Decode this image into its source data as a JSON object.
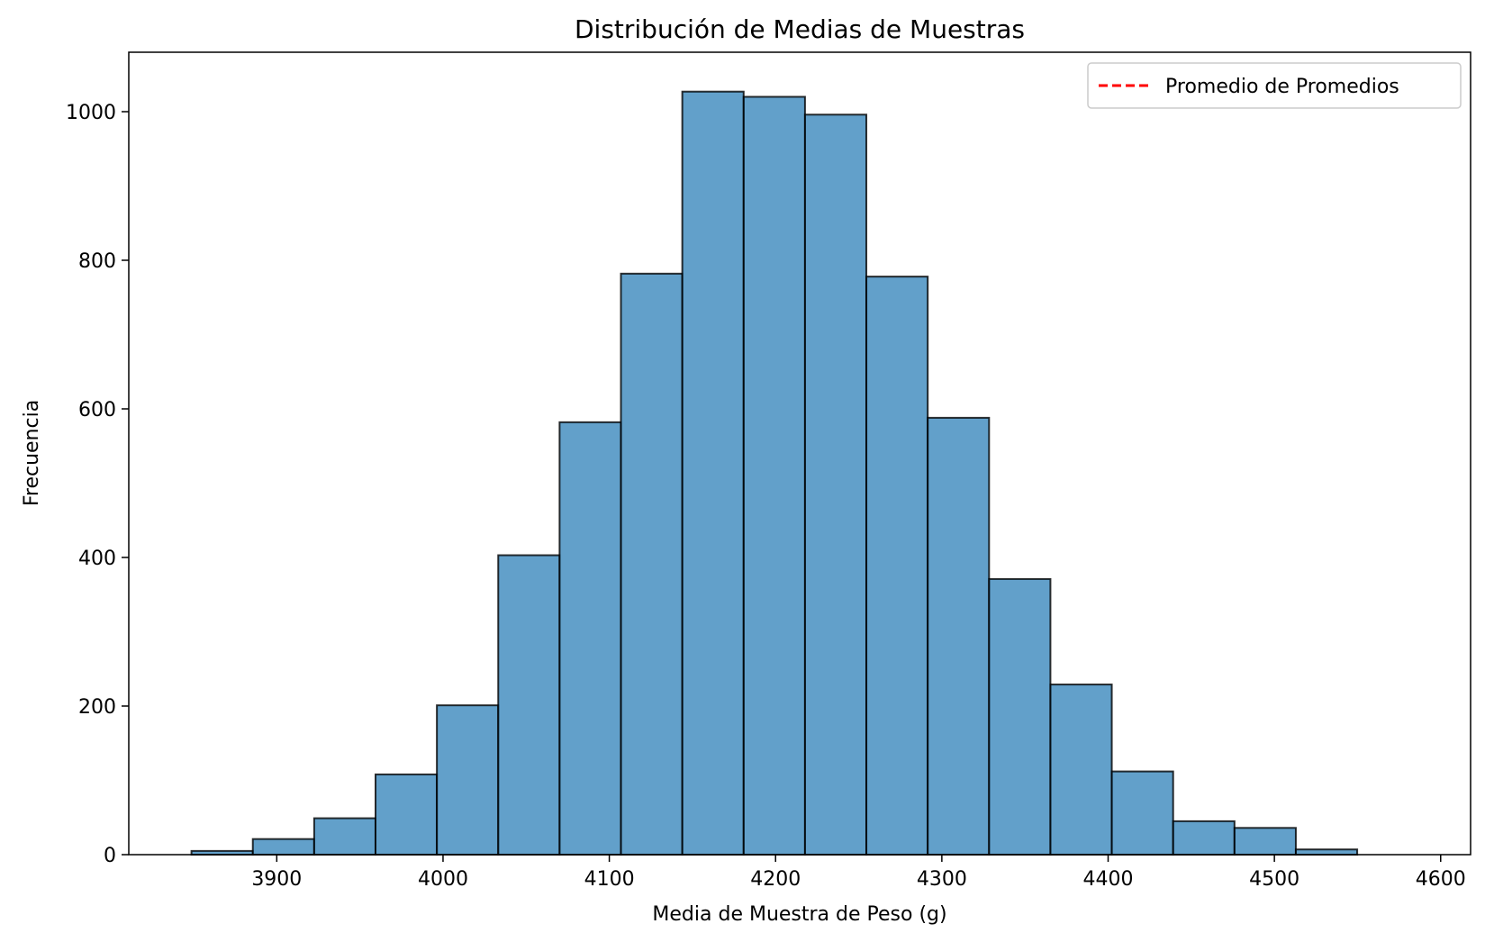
{
  "chart_data": {
    "type": "bar",
    "title": "Distribución de Medias de Muestras",
    "xlabel": "Media de Muestra de Peso (g)",
    "ylabel": "Frecuencia",
    "xlim": [
      3811,
      4618
    ],
    "ylim": [
      0,
      1080
    ],
    "x_ticks": [
      3900,
      4000,
      4100,
      4200,
      4300,
      4400,
      4500,
      4600
    ],
    "y_ticks": [
      0,
      200,
      400,
      600,
      800,
      1000
    ],
    "grid": false,
    "legend": {
      "placement": "top-right",
      "entries": [
        {
          "label": "Promedio de Promedios",
          "style": "dashed",
          "color": "#ff0000"
        }
      ]
    },
    "bin_edges": [
      3848.7,
      3885.6,
      3922.5,
      3959.4,
      3996.3,
      4033.2,
      4070.1,
      4107.0,
      4143.9,
      4180.8,
      4217.7,
      4254.6,
      4291.5,
      4328.4,
      4365.3,
      4402.2,
      4439.1,
      4476.0,
      4512.9,
      4549.8
    ],
    "values": [
      5,
      21,
      49,
      108,
      201,
      403,
      582,
      782,
      1027,
      1020,
      996,
      778,
      588,
      371,
      229,
      112,
      45,
      36,
      7
    ],
    "colors": {
      "bar_fill": "#1f77b4",
      "bar_fill_opacity": 0.7,
      "bar_edge": "#000000"
    }
  }
}
